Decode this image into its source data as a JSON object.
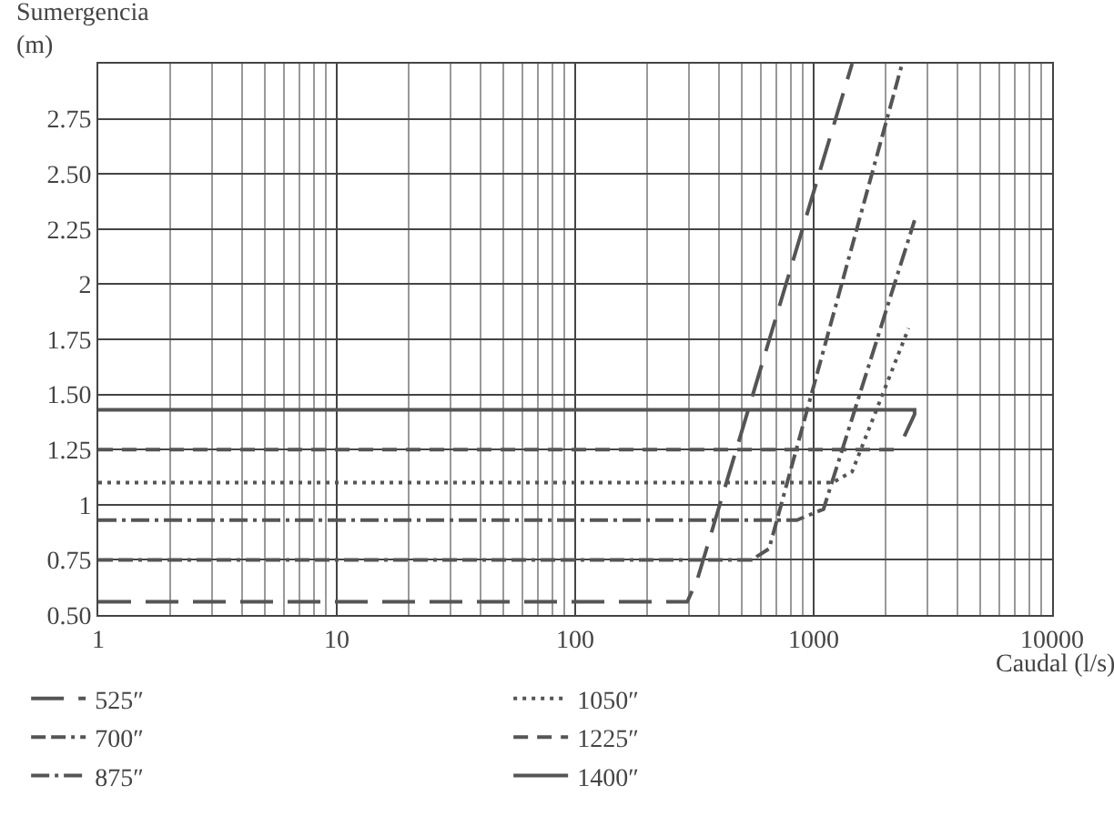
{
  "chart_data": {
    "type": "line",
    "xlabel": "Caudal (l/s)",
    "ylabel": "Sumergencia\n(m)",
    "log": "x",
    "grid": true,
    "legend": "bottom left",
    "xlim": [
      1,
      10000
    ],
    "xticks": [
      1,
      10,
      100,
      1000,
      10000
    ],
    "ylim": [
      0.5,
      3.0
    ],
    "yticks": [
      {
        "value": 0.5,
        "label": "0.50"
      },
      0.75,
      1,
      1.25,
      {
        "value": 1.5,
        "label": "1.50"
      },
      1.75,
      2,
      2.25,
      {
        "value": 2.5,
        "label": "2.50"
      },
      2.75
    ],
    "series": [
      {
        "name": "525″",
        "color": "#555555",
        "line_style": "longdash",
        "x": [
          1,
          295,
          325,
          1450
        ],
        "values": [
          0.56,
          0.56,
          0.66,
          3.0
        ]
      },
      {
        "name": "700″",
        "color": "#555555",
        "line_style": "dashdotdash",
        "x": [
          1,
          550,
          650,
          2350
        ],
        "values": [
          0.75,
          0.75,
          0.8,
          3.0
        ]
      },
      {
        "name": "875″",
        "color": "#555555",
        "line_style": "dashdot",
        "x": [
          1,
          850,
          1100,
          2650
        ],
        "values": [
          0.93,
          0.93,
          0.98,
          2.29
        ]
      },
      {
        "name": "1050″",
        "color": "#555555",
        "line_style": "dotted",
        "x": [
          1,
          1200,
          1450,
          2500
        ],
        "values": [
          1.1,
          1.1,
          1.15,
          1.8
        ]
      },
      {
        "name": "1225″",
        "color": "#555555",
        "line_style": "dashed",
        "x": [
          1,
          2300
        ],
        "values": [
          1.25,
          1.25
        ]
      },
      {
        "name": "1400″",
        "color": "#555555",
        "line_style": "solid",
        "x": [
          1,
          2650,
          2650,
          2400
        ],
        "values": [
          1.43,
          1.43,
          1.41,
          1.31
        ]
      }
    ]
  }
}
